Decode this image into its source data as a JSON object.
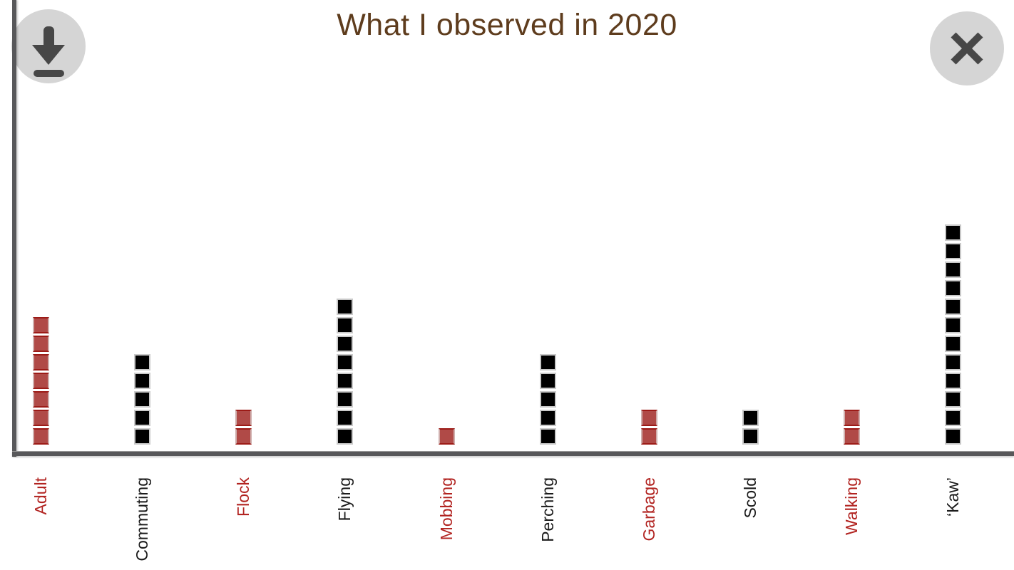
{
  "header": {
    "title": "What I observed in 2020"
  },
  "buttons": {
    "download": {
      "icon": "download-icon"
    },
    "close": {
      "icon": "close-icon"
    }
  },
  "chart_data": {
    "type": "bar",
    "variant": "unit-square-pictograph",
    "title": "What I observed in 2020",
    "categories": [
      "Adult",
      "Commuting",
      "Flock",
      "Flying",
      "Mobbing",
      "Perching",
      "Garbage",
      "Scold",
      "Walking",
      "‘Kaw’"
    ],
    "values": [
      7,
      5,
      2,
      8,
      1,
      5,
      2,
      2,
      2,
      12
    ],
    "bar_colors": [
      "red",
      "black",
      "red",
      "black",
      "red",
      "black",
      "red",
      "black",
      "red",
      "black"
    ],
    "unit_value": 1,
    "ylim": [
      0,
      12
    ],
    "xlabel": "",
    "ylabel": "",
    "grid": false,
    "legend": "none",
    "colors": {
      "red_fill": "#b04a47",
      "red_border": "#9c1b17",
      "red_edge": "#d0b0ae",
      "black_fill": "#000000",
      "black_border": "#c9c9c9",
      "label_red": "#b22421",
      "label_black": "#1b1b1b",
      "axis": "#58585a",
      "title": "#5e3c1d",
      "button_bg": "#d5d5d5",
      "button_glyph": "#474747"
    }
  }
}
